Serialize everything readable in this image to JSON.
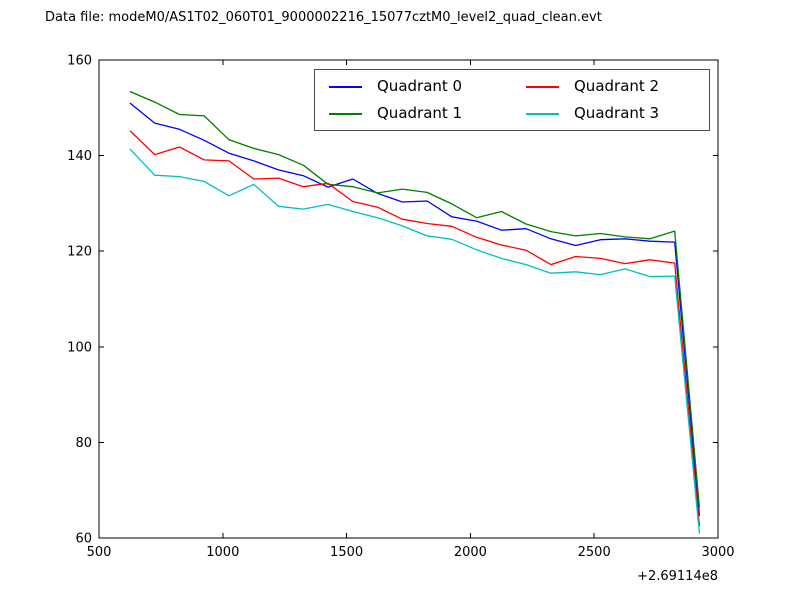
{
  "title": "Data file: modeM0/AS1T02_060T01_9000002216_15077cztM0_level2_quad_clean.evt",
  "chart_data": {
    "type": "line",
    "title": "Data file: modeM0/AS1T02_060T01_9000002216_15077cztM0_level2_quad_clean.evt",
    "xlabel": "",
    "ylabel": "",
    "x_axis_offset_label": "+2.69114e8",
    "xlim": [
      500,
      3000
    ],
    "ylim": [
      60,
      160
    ],
    "xticks": [
      "500",
      "1000",
      "1500",
      "2000",
      "2500",
      "3000"
    ],
    "yticks": [
      "60",
      "80",
      "100",
      "120",
      "140",
      "160"
    ],
    "grid": false,
    "legend_position": "upper center, 2 columns",
    "x": [
      625,
      725,
      825,
      925,
      1025,
      1125,
      1225,
      1325,
      1425,
      1525,
      1625,
      1725,
      1825,
      1925,
      2025,
      2125,
      2225,
      2325,
      2425,
      2525,
      2625,
      2725,
      2825,
      2925
    ],
    "series": [
      {
        "name": "Quadrant 0",
        "color": "#0000ff",
        "values": [
          151.0,
          146.8,
          145.5,
          143.2,
          140.5,
          138.9,
          137.0,
          135.8,
          133.4,
          135.1,
          132.1,
          130.3,
          130.5,
          127.2,
          126.3,
          124.4,
          124.7,
          122.6,
          121.2,
          122.4,
          122.6,
          122.1,
          121.9,
          64.6
        ]
      },
      {
        "name": "Quadrant 1",
        "color": "#007f00",
        "values": [
          153.4,
          151.2,
          148.6,
          148.3,
          143.3,
          141.5,
          140.2,
          138.0,
          134.0,
          133.5,
          132.2,
          133.0,
          132.3,
          129.9,
          127.0,
          128.3,
          125.7,
          124.1,
          123.2,
          123.7,
          123.0,
          122.6,
          124.2,
          66.4
        ]
      },
      {
        "name": "Quadrant 2",
        "color": "#ff0000",
        "values": [
          145.2,
          140.2,
          141.8,
          139.1,
          138.9,
          135.1,
          135.3,
          133.5,
          134.2,
          130.4,
          129.2,
          126.7,
          125.8,
          125.2,
          122.9,
          121.3,
          120.2,
          117.2,
          118.9,
          118.5,
          117.4,
          118.2,
          117.5,
          62.5
        ]
      },
      {
        "name": "Quadrant 3",
        "color": "#00bfbf",
        "values": [
          141.4,
          135.9,
          135.6,
          134.6,
          131.6,
          134.0,
          129.4,
          128.8,
          129.8,
          128.3,
          127.0,
          125.3,
          123.2,
          122.5,
          120.3,
          118.5,
          117.2,
          115.4,
          115.7,
          115.1,
          116.3,
          114.7,
          114.8,
          60.9
        ]
      }
    ]
  }
}
